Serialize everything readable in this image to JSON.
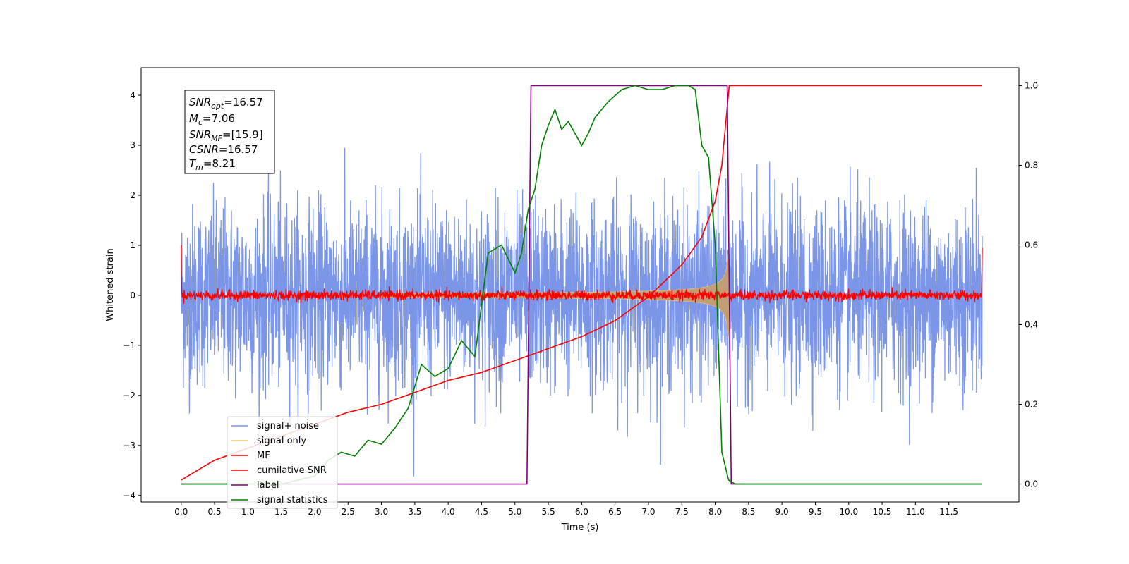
{
  "chart_data": {
    "type": "line",
    "title": "",
    "xlabel": "Time (s)",
    "ylabel": "Whitened strain",
    "y2label": "",
    "xlim": [
      -0.6,
      12.55
    ],
    "ylim": [
      -4.13,
      4.55
    ],
    "y2lim": [
      -0.045,
      1.045
    ],
    "x_ticks": [
      "0.0",
      "0.5",
      "1.0",
      "1.5",
      "2.0",
      "2.5",
      "3.0",
      "3.5",
      "4.0",
      "4.5",
      "5.0",
      "5.5",
      "6.0",
      "6.5",
      "7.0",
      "7.5",
      "8.0",
      "8.5",
      "9.0",
      "9.5",
      "10.0",
      "10.5",
      "11.0",
      "11.5"
    ],
    "y_ticks": [
      "−4",
      "−3",
      "−2",
      "−1",
      "0",
      "1",
      "2",
      "3",
      "4"
    ],
    "y2_ticks": [
      "0.0",
      "0.2",
      "0.4",
      "0.6",
      "0.8",
      "1.0"
    ],
    "grid": false,
    "legend_position": "lower-left",
    "annotation": {
      "snr_opt": {
        "sym": "SNR",
        "sub": "opt",
        "val": "=16.57"
      },
      "mc": {
        "sym": "M",
        "sub": "c",
        "val": "=7.06"
      },
      "snr_mf": {
        "sym": "SNR",
        "sub": "MF",
        "val": "=[15.9]"
      },
      "csnr": {
        "sym": "CSNR",
        "sub": "",
        "val": "=16.57"
      },
      "tm": {
        "sym": "T",
        "sub": "m",
        "val": "=8.21"
      }
    },
    "series": [
      {
        "name": "signal+ noise",
        "color": "#7b96e8",
        "axis": "left",
        "description_noise_std": 0.9,
        "x_range": [
          0,
          12.0
        ]
      },
      {
        "name": "signal only",
        "color": "#ffc66b",
        "axis": "left",
        "chirp": {
          "t_merge": 8.21,
          "peak_amplitude": 1.1
        }
      },
      {
        "name": "MF",
        "color": "#ff0000",
        "axis": "left",
        "noise_std": 0.05,
        "x_range": [
          0,
          12.0
        ]
      },
      {
        "name": "cumilative SNR",
        "color": "#ff0000",
        "axis": "right",
        "x": [
          0,
          0.5,
          1.0,
          1.5,
          2.0,
          2.5,
          3.0,
          3.5,
          4.0,
          4.5,
          5.0,
          5.5,
          6.0,
          6.5,
          7.0,
          7.5,
          7.8,
          8.0,
          8.1,
          8.21,
          12.0
        ],
        "values": [
          0.01,
          0.06,
          0.09,
          0.12,
          0.15,
          0.18,
          0.2,
          0.23,
          0.26,
          0.28,
          0.31,
          0.34,
          0.37,
          0.41,
          0.47,
          0.55,
          0.62,
          0.71,
          0.8,
          1.0,
          1.0
        ]
      },
      {
        "name": "label",
        "color": "#800080",
        "axis": "right",
        "x": [
          0,
          5.18,
          5.24,
          8.18,
          8.24,
          12.0
        ],
        "values": [
          0,
          0,
          1,
          1,
          0,
          0
        ]
      },
      {
        "name": "signal statistics",
        "color": "#008000",
        "axis": "right",
        "x": [
          0,
          0.5,
          1.0,
          1.5,
          2.0,
          2.2,
          2.4,
          2.6,
          2.8,
          3.0,
          3.2,
          3.4,
          3.6,
          3.8,
          4.0,
          4.2,
          4.4,
          4.6,
          4.8,
          5.0,
          5.1,
          5.2,
          5.3,
          5.4,
          5.5,
          5.6,
          5.7,
          5.8,
          6.0,
          6.1,
          6.2,
          6.4,
          6.6,
          6.8,
          7.0,
          7.2,
          7.4,
          7.6,
          7.7,
          7.8,
          7.9,
          8.0,
          8.1,
          8.2,
          8.3,
          12.0
        ],
        "values": [
          0.0,
          0.0,
          0.0,
          0.0,
          0.02,
          0.06,
          0.08,
          0.07,
          0.11,
          0.1,
          0.14,
          0.19,
          0.3,
          0.27,
          0.29,
          0.36,
          0.32,
          0.58,
          0.6,
          0.53,
          0.58,
          0.69,
          0.74,
          0.85,
          0.9,
          0.94,
          0.89,
          0.91,
          0.85,
          0.88,
          0.92,
          0.96,
          0.99,
          1.0,
          0.99,
          0.99,
          1.0,
          1.0,
          0.99,
          0.85,
          0.82,
          0.6,
          0.08,
          0.01,
          0.0,
          0.0
        ]
      }
    ]
  }
}
